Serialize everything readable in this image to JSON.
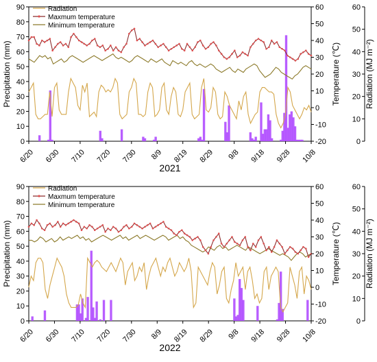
{
  "colors": {
    "radiation": "#d4a64a",
    "max_temperature": "#8b2b2b",
    "max_marker": "#e05050",
    "min_temperature": "#8c7a2a",
    "precipitation": "#b04cff"
  },
  "chart_data": [
    {
      "type": "bar+line",
      "title": "2021",
      "xlabel": "",
      "x_ticks": [
        "6/20",
        "6/30",
        "7/10",
        "7/20",
        "7/30",
        "8/9",
        "8/19",
        "8/29",
        "9/8",
        "9/18",
        "9/28",
        "10/8"
      ],
      "y_left": {
        "label": "Precipitation (mm)",
        "lim": [
          0,
          90
        ],
        "ticks": [
          "0",
          "10",
          "20",
          "30",
          "40",
          "50",
          "60",
          "70",
          "80",
          "90"
        ]
      },
      "y_right1": {
        "label": "Temperature (℃)",
        "lim": [
          -20,
          60
        ],
        "ticks": [
          "-20",
          "-10",
          "0",
          "10",
          "20",
          "30",
          "40",
          "50",
          "60"
        ]
      },
      "y_right2": {
        "label": "Radiation (MJ m⁻²)",
        "lim": [
          0,
          60
        ],
        "ticks": [
          "0",
          "10",
          "20",
          "30",
          "40",
          "50",
          "60"
        ]
      },
      "legend": {
        "position": "top-left",
        "items": [
          "Radiation",
          "Maxmum temperature",
          "Minimum temperature"
        ]
      },
      "series": [
        {
          "name": "Radiation",
          "axis": "radiation",
          "x_start_day": 0,
          "values": [
            22,
            24,
            26,
            12,
            10,
            10,
            11,
            12,
            12,
            22,
            11,
            24,
            26,
            14,
            12,
            12,
            12,
            22,
            28,
            26,
            24,
            16,
            14,
            25,
            22,
            26,
            11,
            12,
            13,
            11,
            22,
            25,
            24,
            22,
            23,
            22,
            24,
            28,
            26,
            12,
            10,
            11,
            12,
            22,
            24,
            28,
            26,
            12,
            12,
            11,
            12,
            22,
            26,
            24,
            11,
            12,
            14,
            24,
            26,
            14,
            12,
            20,
            24,
            22,
            12,
            11,
            14,
            22,
            24,
            26,
            12,
            10,
            11,
            12,
            24,
            28,
            14,
            13,
            15,
            24,
            22,
            12,
            10,
            11,
            22,
            20,
            16,
            14,
            12,
            10,
            18,
            14,
            20,
            22,
            12,
            8,
            10,
            12,
            13,
            22,
            24,
            24,
            23,
            22,
            22,
            21,
            12,
            8,
            6,
            8,
            12,
            24,
            22,
            16,
            14,
            12,
            10,
            12,
            15,
            14,
            16,
            13
          ]
        },
        {
          "name": "Maxmum temperature",
          "axis": "temperature",
          "x_start_day": 0,
          "values": [
            40,
            42,
            42,
            38,
            37,
            40,
            39,
            40,
            41,
            34,
            36,
            38,
            39,
            37,
            38,
            36,
            42,
            44,
            42,
            40,
            39,
            38,
            37,
            38,
            40,
            41,
            37,
            36,
            37,
            34,
            35,
            37,
            34,
            36,
            34,
            33,
            36,
            38,
            44,
            46,
            47,
            40,
            41,
            39,
            37,
            38,
            39,
            40,
            38,
            36,
            37,
            38,
            36,
            34,
            35,
            36,
            37,
            38,
            35,
            34,
            38,
            36,
            34,
            36,
            39,
            40,
            37,
            35,
            36,
            38,
            39,
            37,
            34,
            32,
            30,
            29,
            30,
            32,
            34,
            30,
            31,
            33,
            32,
            31,
            36,
            38,
            40,
            41,
            40,
            39,
            35,
            36,
            40,
            38,
            39,
            36,
            35,
            34,
            31,
            30,
            29,
            28,
            29,
            32,
            33,
            34,
            32,
            31
          ]
        },
        {
          "name": "Minimum temperature",
          "axis": "temperature",
          "x_start_day": 0,
          "values": [
            29,
            28,
            27,
            29,
            31,
            30,
            31,
            29,
            30,
            26,
            27,
            28,
            29,
            27,
            28,
            30,
            31,
            30,
            29,
            28,
            27,
            28,
            29,
            30,
            31,
            30,
            29,
            28,
            29,
            30,
            31,
            32,
            30,
            29,
            30,
            29,
            28,
            27,
            28,
            30,
            31,
            30,
            29,
            28,
            27,
            29,
            28,
            27,
            28,
            29,
            27,
            26,
            25,
            28,
            27,
            26,
            27,
            26,
            25,
            27,
            28,
            26,
            25,
            26,
            25,
            24,
            25,
            26,
            25,
            23,
            22,
            21,
            22,
            23,
            24,
            22,
            21,
            23,
            22,
            21,
            23,
            24,
            25,
            26,
            25,
            22,
            20,
            18,
            19,
            20,
            22,
            24,
            23,
            21,
            20,
            19,
            18,
            17,
            19,
            20,
            22,
            24,
            25,
            24,
            23
          ]
        },
        {
          "name": "Precipitation",
          "axis": "precipitation",
          "type": "bar",
          "days": [
            6,
            11,
            12,
            13,
            40,
            41,
            52,
            64,
            65,
            70,
            71,
            95,
            96,
            97,
            98,
            110,
            111,
            112,
            124,
            125,
            126,
            127,
            130,
            131,
            132,
            133,
            134,
            135,
            136,
            141,
            142,
            143,
            144,
            145,
            146,
            147,
            148,
            149,
            150,
            151,
            152,
            153
          ],
          "values": [
            4,
            1,
            34,
            1,
            7,
            2,
            8,
            3,
            2,
            1,
            3,
            2,
            3,
            1,
            35,
            13,
            6,
            24,
            6,
            2,
            1,
            3,
            26,
            5,
            8,
            8,
            18,
            14,
            2,
            1,
            7,
            19,
            71,
            9,
            18,
            20,
            16,
            10,
            1,
            1,
            1,
            1
          ]
        }
      ]
    },
    {
      "type": "bar+line",
      "title": "2022",
      "xlabel": "",
      "x_ticks": [
        "6/20",
        "6/30",
        "7/10",
        "7/20",
        "7/30",
        "8/9",
        "8/19",
        "8/29",
        "9/8",
        "9/18",
        "9/28",
        "10/8"
      ],
      "y_left": {
        "label": "Precipitation (mm)",
        "lim": [
          0,
          90
        ],
        "ticks": [
          "0",
          "10",
          "20",
          "30",
          "40",
          "50",
          "60",
          "70",
          "80",
          "90"
        ]
      },
      "y_right1": {
        "label": "Temperature (℃)",
        "lim": [
          -20,
          60
        ],
        "ticks": [
          "-20",
          "-10",
          "0",
          "10",
          "20",
          "30",
          "40",
          "50",
          "60"
        ]
      },
      "y_right2": {
        "label": "Radiation (MJ m⁻²)",
        "lim": [
          0,
          60
        ],
        "ticks": [
          "0",
          "10",
          "20",
          "30",
          "40",
          "50",
          "60"
        ]
      },
      "legend": {
        "position": "top-left",
        "items": [
          "Radiation",
          "Maxmum temperature",
          "Minimum temperature"
        ]
      },
      "series": [
        {
          "name": "Radiation",
          "axis": "radiation",
          "x_start_day": 0,
          "values": [
            15,
            20,
            18,
            26,
            28,
            28,
            26,
            14,
            10,
            16,
            20,
            24,
            28,
            26,
            24,
            20,
            12,
            8,
            6,
            6,
            6,
            7,
            12,
            8,
            6,
            28,
            26,
            24,
            26,
            27,
            26,
            24,
            23,
            22,
            24,
            26,
            24,
            22,
            25,
            28,
            26,
            16,
            22,
            24,
            26,
            18,
            20,
            24,
            22,
            26,
            14,
            20,
            24,
            26,
            28,
            24,
            20,
            24,
            22,
            26,
            28,
            24,
            20,
            22,
            26,
            24,
            22,
            24,
            28,
            22,
            6,
            8,
            24,
            22,
            20,
            18,
            16,
            22,
            26,
            24,
            12,
            16,
            22,
            24,
            10,
            8,
            14,
            18,
            26,
            20,
            22,
            24,
            14,
            22,
            24,
            18,
            10,
            12,
            8,
            10,
            22,
            24,
            14,
            20,
            22,
            24,
            22,
            6,
            4,
            6,
            8,
            24,
            20,
            16,
            10,
            22,
            24,
            12,
            20,
            18,
            14
          ]
        },
        {
          "name": "Maxmum temperature",
          "axis": "temperature",
          "x_start_day": 0,
          "values": [
            36,
            38,
            37,
            40,
            38,
            35,
            34,
            37,
            38,
            36,
            37,
            39,
            36,
            38,
            37,
            38,
            39,
            40,
            39,
            38,
            34,
            36,
            35,
            37,
            36,
            34,
            35,
            36,
            37,
            33,
            35,
            34,
            36,
            35,
            33,
            34,
            36,
            37,
            35,
            36,
            38,
            37,
            36,
            35,
            36,
            37,
            38,
            35,
            36,
            37,
            38,
            39,
            36,
            35,
            34,
            32,
            31,
            33,
            34,
            32,
            31,
            30,
            28,
            29,
            30,
            28,
            24,
            22,
            20,
            24,
            28,
            30,
            32,
            26,
            24,
            26,
            28,
            30,
            27,
            26,
            25,
            28,
            30,
            24,
            22,
            26,
            24,
            28,
            30,
            26,
            22,
            24,
            21,
            24,
            28,
            26,
            24,
            20,
            22,
            24,
            23,
            21,
            20,
            22,
            24,
            23,
            18,
            20
          ]
        },
        {
          "name": "Minimum temperature",
          "axis": "temperature",
          "x_start_day": 0,
          "values": [
            28,
            28,
            27,
            28,
            30,
            29,
            27,
            28,
            29,
            27,
            28,
            30,
            28,
            29,
            30,
            29,
            30,
            31,
            29,
            30,
            28,
            29,
            27,
            28,
            29,
            30,
            31,
            30,
            29,
            28,
            29,
            30,
            31,
            29,
            30,
            28,
            29,
            30,
            31,
            29,
            30,
            31,
            30,
            29,
            28,
            29,
            30,
            31,
            30,
            28,
            29,
            30,
            31,
            29,
            30,
            28,
            27,
            25,
            24,
            23,
            22,
            21,
            22,
            24,
            23,
            22,
            24,
            25,
            23,
            24,
            22,
            23,
            24,
            25,
            24,
            23,
            22,
            24,
            23,
            22,
            21,
            20,
            21,
            22,
            23,
            22,
            21,
            20,
            19,
            20,
            19,
            18,
            16,
            18,
            20,
            21,
            20,
            18,
            19,
            20
          ]
        },
        {
          "name": "Precipitation",
          "axis": "precipitation",
          "type": "bar",
          "days": [
            2,
            9,
            27,
            28,
            29,
            30,
            32,
            33,
            35,
            36,
            37,
            38,
            40,
            42,
            46,
            115,
            116,
            117,
            118,
            119,
            120,
            128,
            139,
            140,
            141,
            142,
            156
          ],
          "values": [
            3,
            7,
            11,
            11,
            5,
            15,
            2,
            16,
            47,
            9,
            2,
            13,
            1,
            14,
            14,
            15,
            3,
            4,
            28,
            22,
            14,
            10,
            1,
            12,
            33,
            8,
            14
          ]
        }
      ]
    }
  ]
}
